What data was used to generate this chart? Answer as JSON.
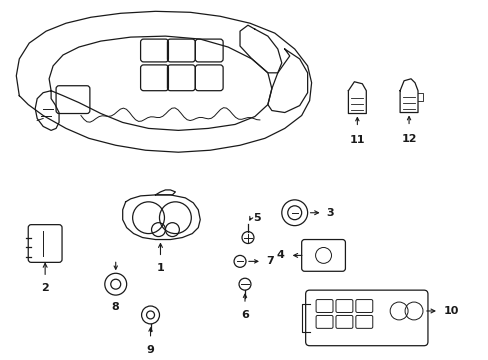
{
  "background_color": "#ffffff",
  "line_color": "#1a1a1a",
  "lw": 0.9,
  "fig_w": 4.89,
  "fig_h": 3.6,
  "dpi": 100
}
